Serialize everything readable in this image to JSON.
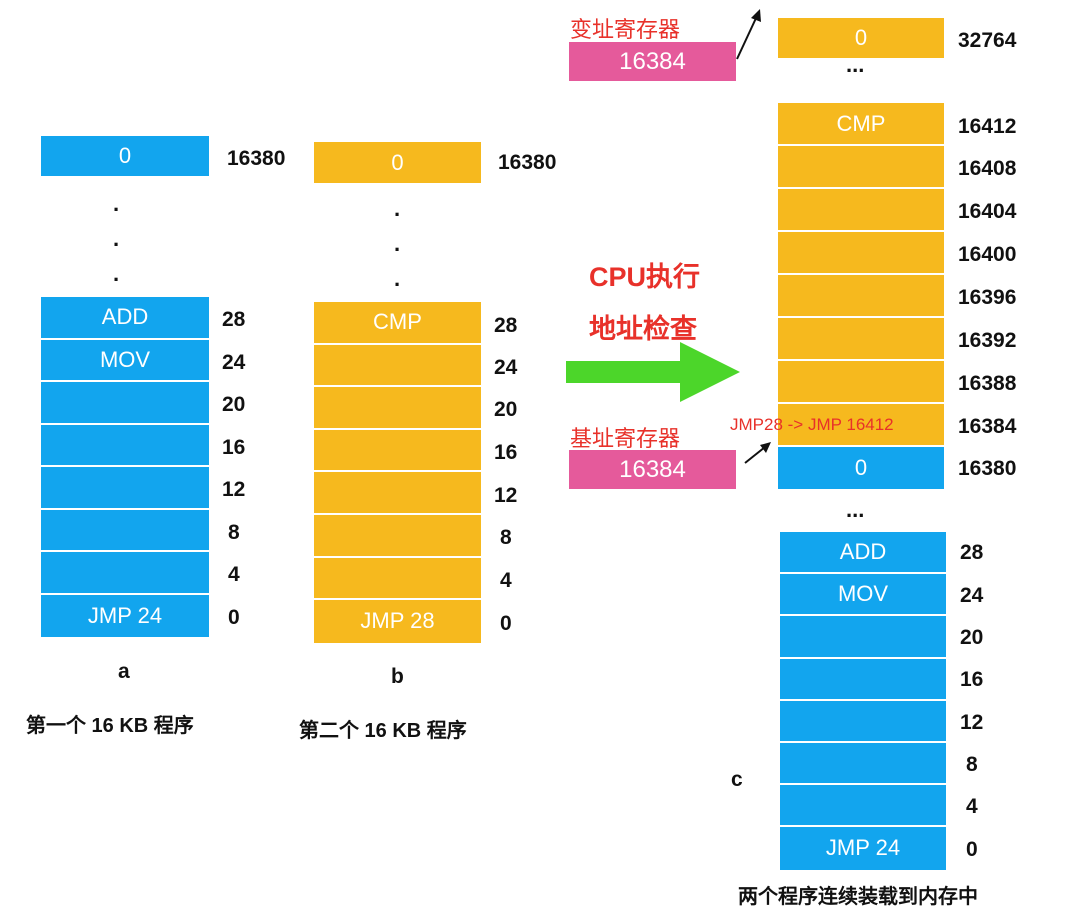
{
  "program_a": {
    "top_cell": "0",
    "top_addr": "16380",
    "cells": [
      "ADD",
      "MOV",
      "",
      "",
      "",
      "",
      "",
      "JMP 24"
    ],
    "addrs": [
      "28",
      "24",
      "20",
      "16",
      "12",
      "8",
      "4",
      "0"
    ],
    "letter": "a",
    "caption": "第一个 16 KB 程序"
  },
  "program_b": {
    "top_cell": "0",
    "top_addr": "16380",
    "cells": [
      "CMP",
      "",
      "",
      "",
      "",
      "",
      "",
      "JMP 28"
    ],
    "addrs": [
      "28",
      "24",
      "20",
      "16",
      "12",
      "8",
      "4",
      "0"
    ],
    "letter": "b",
    "caption": "第二个 16 KB 程序"
  },
  "cpu": {
    "line1": "CPU执行",
    "line2": "地址检查"
  },
  "limit_register": {
    "title": "变址寄存器",
    "value": "16384"
  },
  "base_register": {
    "title": "基址寄存器",
    "value": "16384"
  },
  "program_c": {
    "top_cell": "0",
    "top_addr": "32764",
    "ellipsis": "...",
    "upper_cells": [
      "CMP",
      "",
      "",
      "",
      "",
      "",
      "",
      "JMP28 -> JMP 16412"
    ],
    "upper_addrs": [
      "16412",
      "16408",
      "16404",
      "16400",
      "16396",
      "16392",
      "16388",
      "16384"
    ],
    "mid_cell": "0",
    "mid_addr": "16380",
    "lower_cells": [
      "ADD",
      "MOV",
      "",
      "",
      "",
      "",
      "",
      "JMP 24"
    ],
    "lower_addrs": [
      "28",
      "24",
      "20",
      "16",
      "12",
      "8",
      "4",
      "0"
    ],
    "letter": "c",
    "caption": "两个程序连续装载到内存中"
  },
  "colors": {
    "blue": "#12a5ee",
    "orange": "#f6b91e",
    "pink": "#e55a9b",
    "red": "#e8312a",
    "green": "#4cd62a"
  }
}
